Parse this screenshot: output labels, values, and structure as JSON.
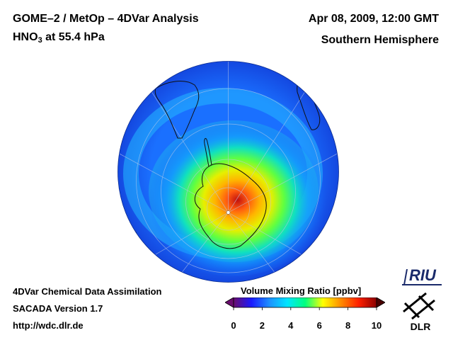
{
  "header": {
    "title": "GOME–2 / MetOp – 4DVar Analysis",
    "species_main": "HNO",
    "species_sub": "3",
    "species_rest": " at 55.4 hPa",
    "date": "Apr 08, 2009, 12:00 GMT",
    "hemisphere": "Southern Hemisphere"
  },
  "footer": {
    "line1": "4DVar Chemical Data Assimilation",
    "line2": "SACADA Version 1.7",
    "line3": "http://wdc.dlr.de"
  },
  "colorbar": {
    "label": "Volume Mixing Ratio [ppbv]",
    "ticks": [
      "0",
      "2",
      "4",
      "6",
      "8",
      "10"
    ],
    "min": 0,
    "max": 10,
    "colors": [
      "#6a0d6e",
      "#1a1aff",
      "#1e90ff",
      "#00e5ff",
      "#00ff7f",
      "#ffff00",
      "#ff8c00",
      "#ff2000",
      "#8b0000"
    ]
  },
  "logos": {
    "riu": "RIU",
    "dlr": "DLR"
  },
  "map": {
    "projection": "orthographic-south-polar",
    "background_color": "#1565ff"
  }
}
